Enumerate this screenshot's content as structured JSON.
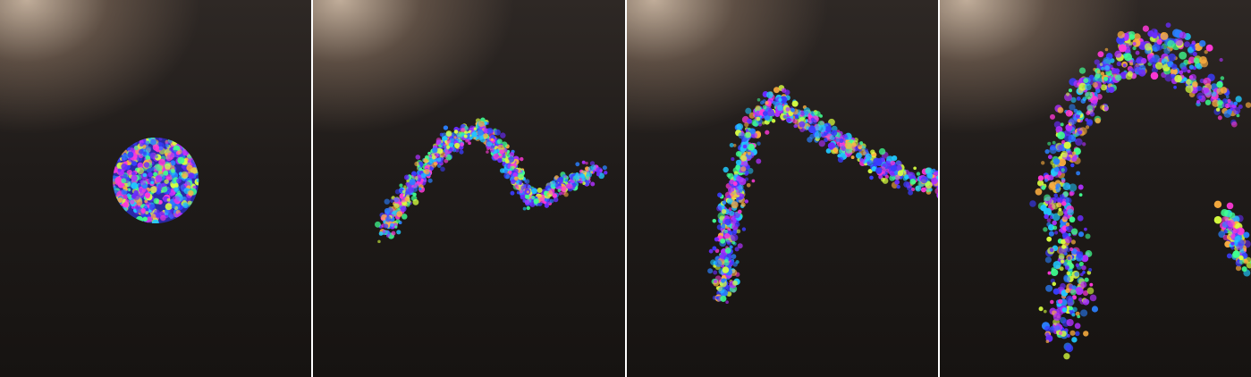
{
  "frames": [
    {
      "id": "frame-1",
      "stage": "sphere"
    },
    {
      "id": "frame-2",
      "stage": "bent-tube"
    },
    {
      "id": "frame-3",
      "stage": "arch"
    },
    {
      "id": "frame-4",
      "stage": "dispersed"
    }
  ],
  "colors": {
    "background_dark": "#161311",
    "light_glow": "#c8b4a0",
    "particle_palette": [
      "#3a3cff",
      "#6a2cff",
      "#b030ff",
      "#ff38d8",
      "#20c8ff",
      "#40ff90",
      "#d8ff40",
      "#ffb040",
      "#2a80ff"
    ]
  }
}
